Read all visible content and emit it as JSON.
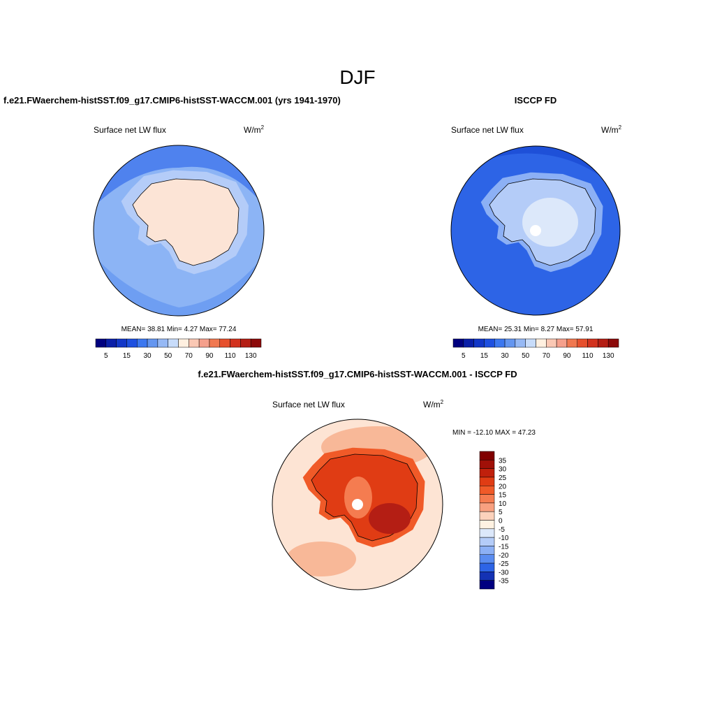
{
  "title": "DJF",
  "panels": [
    {
      "title": "f.e21.FWaerchem-histSST.f09_g17.CMIP6-histSST-WACCM.001 (yrs 1941-1970)",
      "variable": "Surface net LW flux",
      "units": "W/m",
      "units_sup": "2",
      "stats": "MEAN=  38.81  Min=   4.27  Max=  77.24",
      "colorbar": {
        "colors": [
          "#00007f",
          "#0a1fa8",
          "#1237c8",
          "#1e50e0",
          "#3c78f0",
          "#6496f0",
          "#96b9f5",
          "#c8dcfa",
          "#fff0e0",
          "#fac8b4",
          "#f5a08c",
          "#f07850",
          "#e6502d",
          "#d2321e",
          "#b41e14",
          "#8c0a0a"
        ],
        "labels": [
          5,
          15,
          30,
          50,
          70,
          90,
          110,
          130
        ]
      }
    },
    {
      "title": "ISCCP FD",
      "variable": "Surface net LW flux",
      "units": "W/m",
      "units_sup": "2",
      "stats": "MEAN=  25.31  Min=   8.27  Max=  57.91",
      "colorbar": {
        "colors": [
          "#00007f",
          "#0a1fa8",
          "#1237c8",
          "#1e50e0",
          "#3c78f0",
          "#6496f0",
          "#96b9f5",
          "#c8dcfa",
          "#fff0e0",
          "#fac8b4",
          "#f5a08c",
          "#f07850",
          "#e6502d",
          "#d2321e",
          "#b41e14",
          "#8c0a0a"
        ],
        "labels": [
          5,
          15,
          30,
          50,
          70,
          90,
          110,
          130
        ]
      }
    },
    {
      "title": "f.e21.FWaerchem-histSST.f09_g17.CMIP6-histSST-WACCM.001 - ISCCP FD",
      "variable": "Surface net LW flux",
      "units": "W/m",
      "units_sup": "2",
      "stats": "MIN = -12.10 MAX =  47.23",
      "colorbar": {
        "colors": [
          "#800000",
          "#a01008",
          "#c0200c",
          "#e03c14",
          "#f05a28",
          "#f57c50",
          "#f8a080",
          "#fcd2bc",
          "#fff2e2",
          "#dce8fa",
          "#b4ccf8",
          "#8cb0f5",
          "#5a8cf0",
          "#2d64e6",
          "#1432b4",
          "#000080"
        ],
        "labels": [
          35,
          30,
          25,
          20,
          15,
          10,
          5,
          0,
          -5,
          -10,
          -15,
          -20,
          -25,
          -30,
          -35
        ]
      }
    }
  ]
}
